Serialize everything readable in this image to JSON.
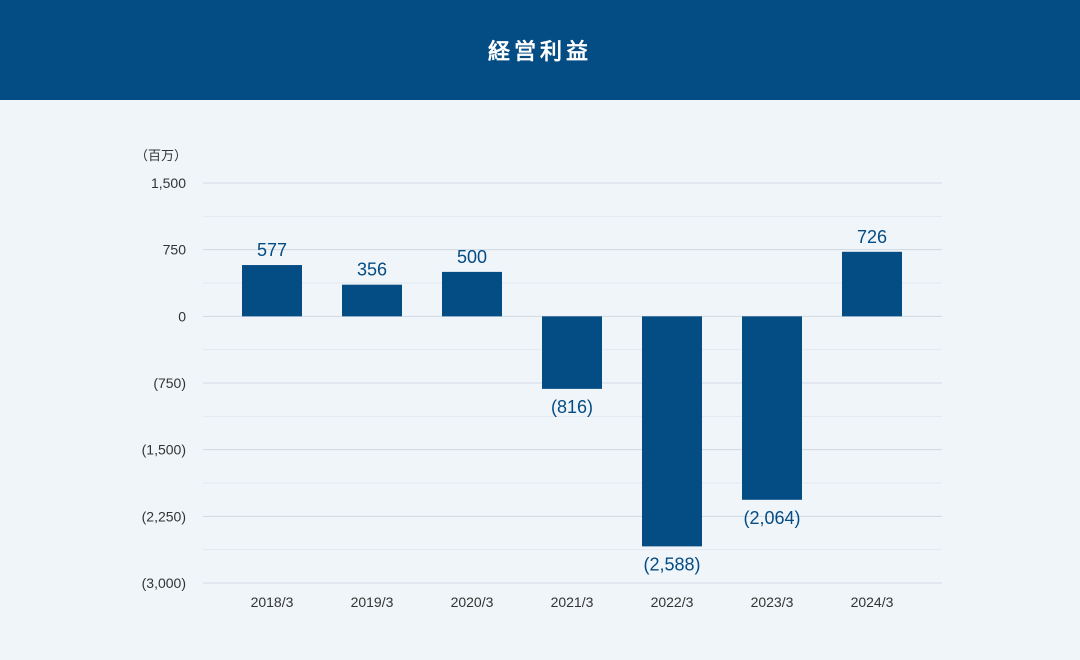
{
  "header": {
    "title": "経営利益"
  },
  "colors": {
    "header_bg": "#044c84",
    "bar": "#044c84",
    "background": "#f0f5f9",
    "grid": "#cfd9e2"
  },
  "chart_data": {
    "type": "bar",
    "title": "経営利益",
    "unit_label": "（百万）",
    "categories": [
      "2018/3",
      "2019/3",
      "2020/3",
      "2021/3",
      "2022/3",
      "2023/3",
      "2024/3"
    ],
    "values": [
      577,
      356,
      500,
      -816,
      -2588,
      -2064,
      726
    ],
    "value_labels": [
      "577",
      "356",
      "500",
      "(816)",
      "(2,588)",
      "(2,064)",
      "726"
    ],
    "y_ticks": [
      1500,
      750,
      0,
      -750,
      -1500,
      -2250,
      -3000
    ],
    "y_tick_labels": [
      "1,500",
      "750",
      "0",
      "(750)",
      "(1,500)",
      "(2,250)",
      "(3,000)"
    ],
    "ylim": [
      -3000,
      1500
    ],
    "grid": true,
    "minor_grid": true
  }
}
